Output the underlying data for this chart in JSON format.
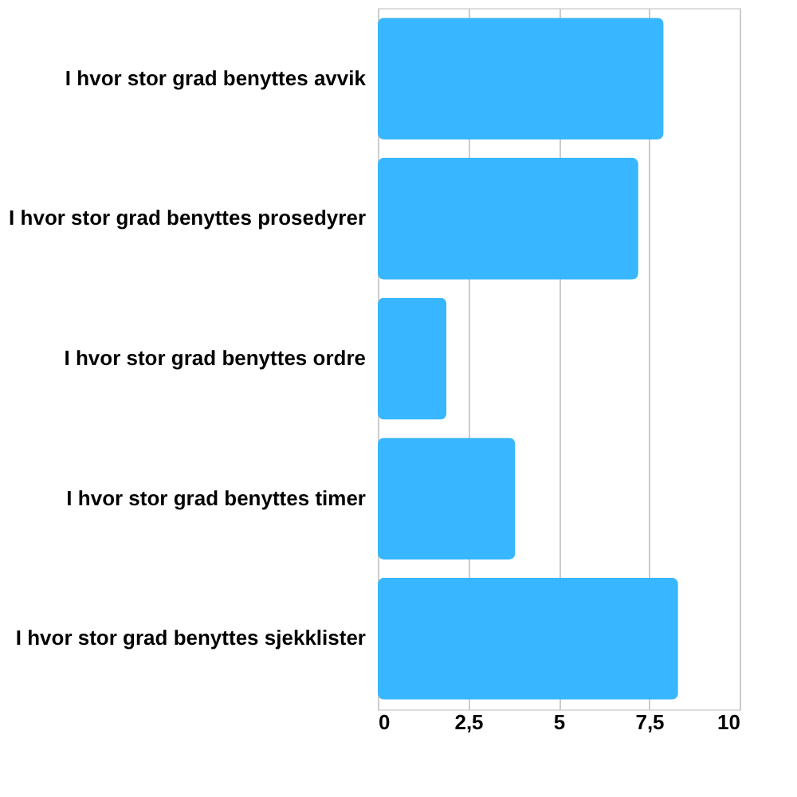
{
  "chart_data": {
    "type": "bar",
    "orientation": "horizontal",
    "categories": [
      "I hvor stor grad benyttes avvik",
      "I hvor stor grad benyttes prosedyrer",
      "I hvor stor grad benyttes ordre",
      "I hvor stor grad benyttes timer",
      "I hvor stor grad benyttes sjekklister"
    ],
    "values": [
      7.9,
      7.2,
      1.9,
      3.8,
      8.3
    ],
    "color": "#38b6ff",
    "xlim": [
      0,
      10
    ],
    "xticks": [
      0,
      {
        "value": 2.5,
        "label": "2,5"
      },
      5,
      {
        "value": 7.5,
        "label": "7,5"
      },
      10
    ],
    "grid": "x"
  }
}
